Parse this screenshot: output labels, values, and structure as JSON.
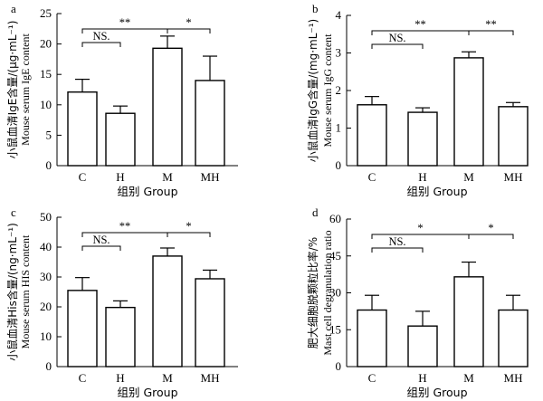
{
  "chart_data": [
    {
      "type": "bar",
      "panel_label": "a",
      "categories": [
        "C",
        "H",
        "M",
        "MH"
      ],
      "values": [
        12.1,
        8.6,
        19.3,
        14.0
      ],
      "errors": [
        2.1,
        1.2,
        2.0,
        4.0
      ],
      "ylim": [
        0,
        25
      ],
      "yticks": [
        "0",
        "5",
        "10",
        "15",
        "20",
        "25"
      ],
      "ylabel_cn": "小鼠血清IgE含量/(μg·mL⁻¹)",
      "ylabel_en": "Mouse serum IgE content",
      "xlabel": "组别  Group",
      "comparisons": [
        {
          "from": 0,
          "to": 2,
          "label": "**",
          "level": 2
        },
        {
          "from": 0,
          "to": 1,
          "label": "NS.",
          "level": 1
        },
        {
          "from": 2,
          "to": 3,
          "label": "*",
          "level": 2
        }
      ]
    },
    {
      "type": "bar",
      "panel_label": "b",
      "categories": [
        "C",
        "H",
        "M",
        "MH"
      ],
      "values": [
        1.62,
        1.42,
        2.87,
        1.57
      ],
      "errors": [
        0.22,
        0.12,
        0.16,
        0.11
      ],
      "ylim": [
        0,
        4
      ],
      "yticks": [
        "0",
        "1",
        "2",
        "3",
        "4"
      ],
      "ylabel_cn": "小鼠血清IgG含量/(mg·mL⁻¹)",
      "ylabel_en": "Mouse serum IgG content",
      "xlabel": "组别  Group",
      "comparisons": [
        {
          "from": 0,
          "to": 2,
          "label": "**",
          "level": 2
        },
        {
          "from": 0,
          "to": 1,
          "label": "NS.",
          "level": 1
        },
        {
          "from": 2,
          "to": 3,
          "label": "**",
          "level": 2
        }
      ]
    },
    {
      "type": "bar",
      "panel_label": "c",
      "categories": [
        "C",
        "H",
        "M",
        "MH"
      ],
      "values": [
        25.5,
        19.8,
        37.0,
        29.4
      ],
      "errors": [
        4.3,
        2.2,
        2.7,
        2.9
      ],
      "ylim": [
        0,
        50
      ],
      "yticks": [
        "0",
        "10",
        "20",
        "30",
        "40",
        "50"
      ],
      "ylabel_cn": "小鼠血清His含量/(ng·mL⁻¹)",
      "ylabel_en": "Mouse serum HIS content",
      "xlabel": "组别  Group",
      "comparisons": [
        {
          "from": 0,
          "to": 2,
          "label": "**",
          "level": 2
        },
        {
          "from": 0,
          "to": 1,
          "label": "NS.",
          "level": 1
        },
        {
          "from": 2,
          "to": 3,
          "label": "*",
          "level": 2
        }
      ]
    },
    {
      "type": "bar",
      "panel_label": "d",
      "categories": [
        "C",
        "H",
        "M",
        "MH"
      ],
      "values": [
        23.0,
        16.5,
        36.5,
        23.0
      ],
      "errors": [
        6.0,
        6.0,
        6.0,
        6.0
      ],
      "ylim": [
        0,
        60
      ],
      "yticks": [
        "0",
        "15",
        "30",
        "45",
        "60"
      ],
      "ylabel_cn": "肥大细胞脱颗粒比率/%",
      "ylabel_en": "Mast cell degranulation ratio",
      "xlabel": "组别  Group",
      "comparisons": [
        {
          "from": 0,
          "to": 2,
          "label": "*",
          "level": 2
        },
        {
          "from": 0,
          "to": 1,
          "label": "NS.",
          "level": 1
        },
        {
          "from": 2,
          "to": 3,
          "label": "*",
          "level": 2
        }
      ]
    }
  ]
}
